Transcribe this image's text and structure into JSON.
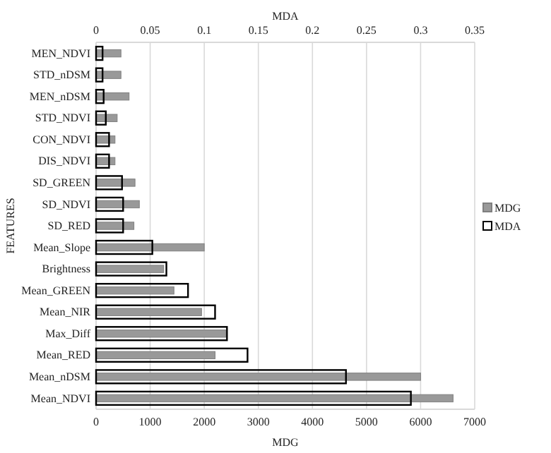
{
  "chart_data": {
    "type": "bar",
    "orientation": "horizontal",
    "xlabel": "MDG",
    "x2label": "MDA",
    "ylabel": "FEATURES",
    "categories": [
      "MEN_NDVI",
      "STD_nDSM",
      "MEN_nDSM",
      "STD_NDVI",
      "CON_NDVI",
      "DIS_NDVI",
      "SD_GREEN",
      "SD_NDVI",
      "SD_RED",
      "Mean_Slope",
      "Brightness",
      "Mean_GREEN",
      "Mean_NIR",
      "Max_Diff",
      "Mean_RED",
      "Mean_nDSM",
      "Mean_NDVI"
    ],
    "series": [
      {
        "name": "MDG",
        "color": "#999999",
        "values": [
          460,
          460,
          610,
          390,
          350,
          350,
          720,
          800,
          700,
          2000,
          1250,
          1440,
          1950,
          2400,
          2200,
          6000,
          6600
        ]
      },
      {
        "name": "MDA",
        "color": "#000000",
        "axis": "x2",
        "values": [
          0.006,
          0.006,
          0.007,
          0.009,
          0.012,
          0.012,
          0.024,
          0.025,
          0.025,
          0.052,
          0.065,
          0.085,
          0.11,
          0.121,
          0.14,
          0.231,
          0.291
        ]
      }
    ],
    "xlim": [
      0,
      7000
    ],
    "xticks": [
      0,
      1000,
      2000,
      3000,
      4000,
      5000,
      6000,
      7000
    ],
    "x2lim": [
      0,
      0.35
    ],
    "x2ticks": [
      0,
      0.05,
      0.1,
      0.15,
      0.2,
      0.25,
      0.3,
      0.35
    ],
    "grid": "x",
    "legend": "right"
  }
}
